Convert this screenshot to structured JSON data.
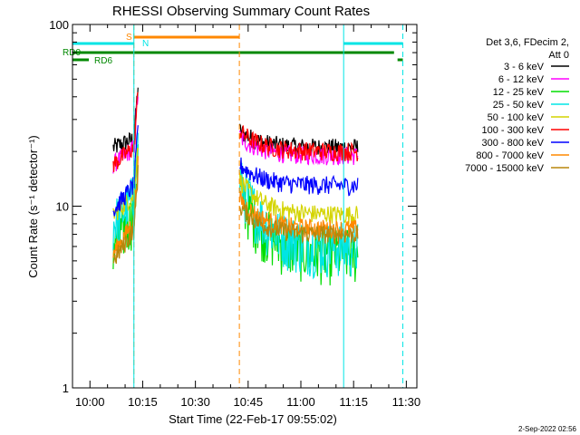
{
  "chart_data": {
    "type": "line",
    "title": "RHESSI Observing Summary Count Rates",
    "xlabel": "Start Time (22-Feb-17 09:55:02)",
    "ylabel": "Count Rate (s⁻¹ detector⁻¹)",
    "y_scale": "log",
    "ylim": [
      1,
      100
    ],
    "xlim": [
      "09:55:02",
      "11:33:00"
    ],
    "x_ticks": [
      "10:00",
      "10:15",
      "10:30",
      "10:45",
      "11:00",
      "11:15",
      "11:30"
    ],
    "y_ticks": [
      "1",
      "10",
      "100"
    ],
    "legend_title": "Det 3,6, FDecim 2, Att 0",
    "legend_placement": "right",
    "footer": "2-Sep-2022 02:56",
    "series": [
      {
        "name": "3 - 6 keV",
        "color": "#000000",
        "values": [
          [
            10.11,
            21,
            24
          ],
          [
            10.71,
            26,
            21
          ]
        ]
      },
      {
        "name": "6 - 12 keV",
        "color": "#ff00ff",
        "values": [
          [
            10.11,
            17,
            22
          ],
          [
            10.71,
            24,
            19
          ]
        ]
      },
      {
        "name": "12 - 25 keV",
        "color": "#00dd00",
        "values": [
          [
            10.11,
            6,
            10
          ],
          [
            10.71,
            12,
            5.5
          ]
        ]
      },
      {
        "name": "25 - 50 keV",
        "color": "#00e5e5",
        "values": [
          [
            10.11,
            8,
            12
          ],
          [
            10.71,
            14,
            6
          ]
        ]
      },
      {
        "name": "50 - 100 keV",
        "color": "#d4d400",
        "values": [
          [
            10.11,
            9,
            12
          ],
          [
            10.71,
            14,
            9
          ]
        ]
      },
      {
        "name": "100 - 300 keV",
        "color": "#ff0000",
        "values": [
          [
            10.11,
            17,
            22
          ],
          [
            10.71,
            26,
            20
          ]
        ]
      },
      {
        "name": "300 - 800 keV",
        "color": "#0000ff",
        "values": [
          [
            10.11,
            9.5,
            14
          ],
          [
            10.71,
            17,
            13
          ]
        ]
      },
      {
        "name": "800 - 7000 keV",
        "color": "#ff8800",
        "values": [
          [
            10.11,
            5.5,
            9
          ],
          [
            10.71,
            11,
            7.5
          ]
        ]
      },
      {
        "name": "7000 - 15000 keV",
        "color": "#b8860b",
        "values": [
          [
            10.11,
            5,
            8
          ],
          [
            10.71,
            10,
            7
          ]
        ]
      }
    ],
    "flags": [
      {
        "label": "S",
        "color": "#ff8800"
      },
      {
        "label": "N",
        "color": "#00e5e5"
      },
      {
        "label": "RD0",
        "color": "#008800"
      },
      {
        "label": "RD6",
        "color": "#008800"
      }
    ],
    "vertical_lines": [
      {
        "time": "10:12:30",
        "color": "#ff8800",
        "style": "dashed"
      },
      {
        "time": "10:12:30",
        "color": "#00e5e5",
        "style": "solid"
      },
      {
        "time": "10:42:30",
        "color": "#ff8800",
        "style": "dashed"
      },
      {
        "time": "11:12:10",
        "color": "#00e5e5",
        "style": "solid"
      },
      {
        "time": "11:29:00",
        "color": "#00e5e5",
        "style": "dashed"
      }
    ]
  }
}
